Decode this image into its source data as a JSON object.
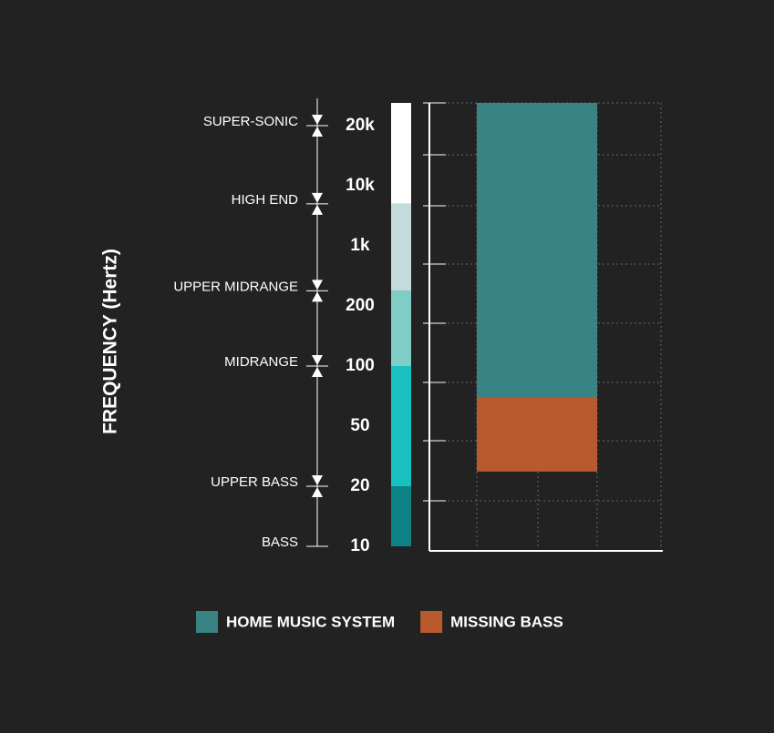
{
  "chart_data": {
    "type": "range-bar",
    "y_label": "FREQUENCY (Hertz)",
    "ylim": [
      10,
      26000
    ],
    "yticks": [
      10,
      20,
      50,
      100,
      200,
      {
        "value": 1000,
        "label": "1k"
      },
      {
        "value": 10000,
        "label": "10k"
      },
      {
        "value": 20000,
        "label": "20k"
      }
    ],
    "bands": [
      {
        "name": "BASS",
        "from": 10,
        "color": "#0e8385"
      },
      {
        "name": "UPPER BASS",
        "from": 20,
        "color": "#19c0c2"
      },
      {
        "name": "MIDRANGE",
        "from": 100,
        "color": "#80ccc7"
      },
      {
        "name": "UPPER MIDRANGE",
        "from": 300,
        "color": "#c3dbdb"
      },
      {
        "name": "HIGH END",
        "from": 5000,
        "color": "#ffffff"
      },
      {
        "name": "SUPER-SONIC",
        "from": 20000,
        "color": "#ffffff"
      }
    ],
    "series": [
      {
        "name": "HOME MUSIC SYSTEM",
        "color": "#3a8385",
        "values": [
          70,
          26000
        ]
      },
      {
        "name": "MISSING BASS",
        "color": "#b85a2e",
        "values": [
          25,
          70
        ]
      }
    ],
    "grid": true
  }
}
